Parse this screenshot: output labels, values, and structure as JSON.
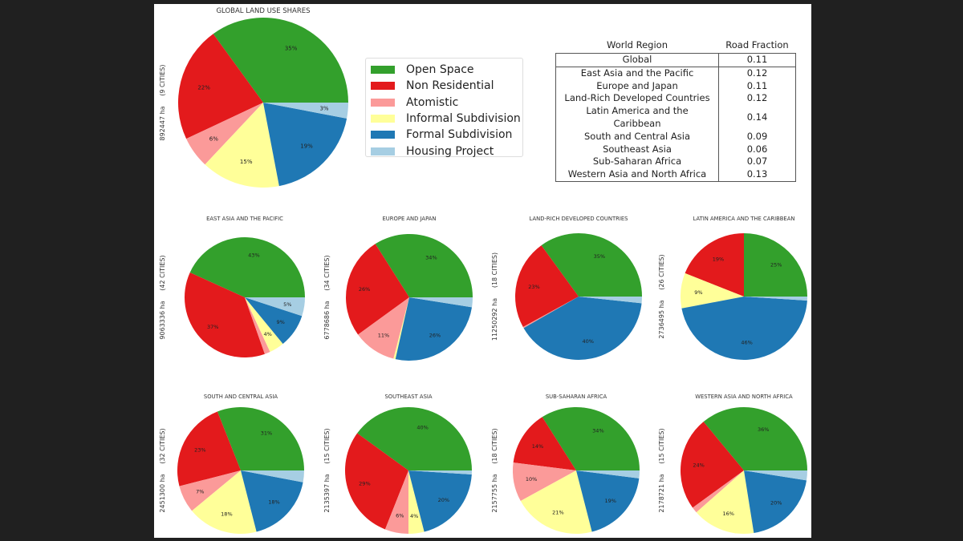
{
  "chart_data": {
    "type": "pie",
    "categories": [
      "Open Space",
      "Non Residential",
      "Atomistic",
      "Informal Subdivision",
      "Formal Subdivision",
      "Housing Project"
    ],
    "colors": {
      "Open Space": "#33a02c",
      "Non Residential": "#e31a1c",
      "Atomistic": "#fb9a99",
      "Informal Subdivision": "#ffff99",
      "Formal Subdivision": "#1f78b4",
      "Housing Project": "#a6cee3"
    },
    "start_angle_deg": 0,
    "direction": "counterclockwise",
    "legend": {
      "placement": "right of global pie",
      "entries": [
        "Open Space",
        "Non Residential",
        "Atomistic",
        "Informal Subdivision",
        "Formal Subdivision",
        "Housing Project"
      ]
    },
    "pies": [
      {
        "id": "global",
        "title": "GLOBAL LAND USE SHARES",
        "ylabel": "892447 ha     (9 CITIES)",
        "values": [
          35,
          22,
          6,
          15,
          19,
          3
        ],
        "labels": [
          "35%",
          "22%",
          "6%",
          "15%",
          "19%",
          "3%"
        ]
      },
      {
        "id": "east-asia",
        "title": "EAST ASIA AND THE PACIFIC",
        "ylabel": "9063336 ha     (42 CITIES)",
        "values": [
          43,
          37,
          1.5,
          4,
          9,
          5
        ],
        "labels": [
          "43%",
          "37%",
          "",
          "4%",
          "9%",
          "5%"
        ]
      },
      {
        "id": "europe-japan",
        "title": "EUROPE AND JAPAN",
        "ylabel": "6778686 ha     (34 CITIES)",
        "values": [
          34,
          26,
          11,
          0.5,
          26,
          2.5
        ],
        "labels": [
          "34%",
          "26%",
          "11%",
          "",
          "26%",
          ""
        ]
      },
      {
        "id": "land-rich",
        "title": "LAND-RICH DEVELOPED COUNTRIES",
        "ylabel": "11250292 ha     (18 CITIES)",
        "values": [
          35,
          23,
          0.3,
          0,
          40,
          1.7
        ],
        "labels": [
          "35%",
          "23%",
          "",
          "",
          "40%",
          ""
        ]
      },
      {
        "id": "latin-america",
        "title": "LATIN AMERICA AND THE CARIBBEAN",
        "ylabel": "2736495 ha     (26 CITIES)",
        "values": [
          25,
          19,
          0,
          9,
          46,
          1
        ],
        "labels": [
          "25%",
          "19%",
          "",
          "9%",
          "46%",
          ""
        ]
      },
      {
        "id": "south-central-asia",
        "title": "SOUTH AND CENTRAL ASIA",
        "ylabel": "2451300 ha     (32 CITIES)",
        "values": [
          31,
          23,
          7,
          18,
          18,
          3
        ],
        "labels": [
          "31%",
          "23%",
          "7%",
          "18%",
          "18%",
          ""
        ]
      },
      {
        "id": "southeast-asia",
        "title": "SOUTHEAST ASIA",
        "ylabel": "2135397 ha     (15 CITIES)",
        "values": [
          40,
          29,
          6,
          4,
          20,
          1
        ],
        "labels": [
          "40%",
          "29%",
          "6%",
          "4%",
          "20%",
          ""
        ]
      },
      {
        "id": "sub-saharan",
        "title": "SUB-SAHARAN AFRICA",
        "ylabel": "2157755 ha     (18 CITIES)",
        "values": [
          34,
          14,
          10,
          21,
          19,
          2
        ],
        "labels": [
          "34%",
          "14%",
          "10%",
          "21%",
          "19%",
          ""
        ]
      },
      {
        "id": "western-asia",
        "title": "WESTERN ASIA AND NORTH AFRICA",
        "ylabel": "2178721 ha     (15 CITIES)",
        "values": [
          36,
          24,
          1.5,
          16,
          20,
          2.5
        ],
        "labels": [
          "36%",
          "24%",
          "",
          "16%",
          "20%",
          ""
        ]
      }
    ],
    "table": {
      "headers": [
        "World Region",
        "Road Fraction"
      ],
      "rows": [
        [
          "Global",
          "0.11"
        ],
        [
          "East Asia and the Pacific",
          "0.12"
        ],
        [
          "Europe and Japan",
          "0.11"
        ],
        [
          "Land-Rich Developed Countries",
          "0.12"
        ],
        [
          "Latin America and the Caribbean",
          "0.14"
        ],
        [
          "South and Central Asia",
          "0.09"
        ],
        [
          "Southeast Asia",
          "0.06"
        ],
        [
          "Sub-Saharan Africa",
          "0.07"
        ],
        [
          "Western Asia and North Africa",
          "0.13"
        ]
      ]
    }
  }
}
